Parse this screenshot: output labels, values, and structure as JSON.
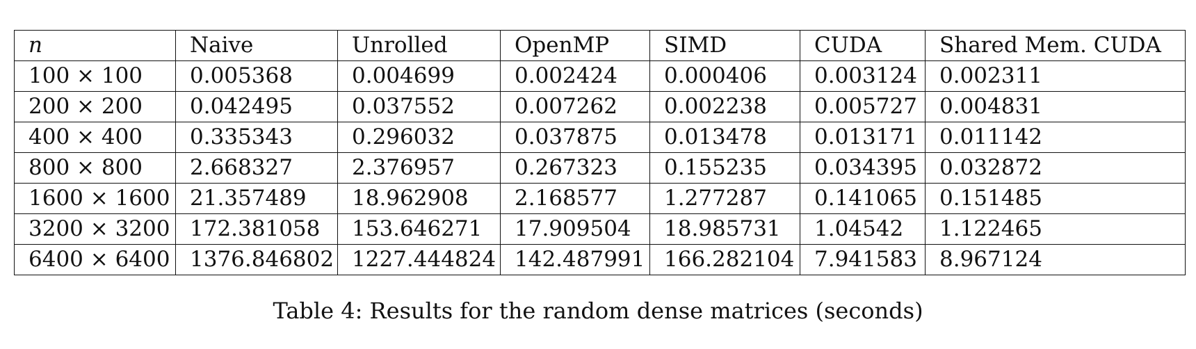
{
  "table": {
    "headers": [
      "n",
      "Naive",
      "Unrolled",
      "OpenMP",
      "SIMD",
      "CUDA",
      "Shared Mem. CUDA"
    ],
    "rows": [
      [
        "100 × 100",
        "0.005368",
        "0.004699",
        "0.002424",
        "0.000406",
        "0.003124",
        "0.002311"
      ],
      [
        "200 × 200",
        "0.042495",
        "0.037552",
        "0.007262",
        "0.002238",
        "0.005727",
        "0.004831"
      ],
      [
        "400 × 400",
        "0.335343",
        "0.296032",
        "0.037875",
        "0.013478",
        "0.013171",
        "0.011142"
      ],
      [
        "800 × 800",
        "2.668327",
        "2.376957",
        "0.267323",
        "0.155235",
        "0.034395",
        "0.032872"
      ],
      [
        "1600 × 1600",
        "21.357489",
        "18.962908",
        "2.168577",
        "1.277287",
        "0.141065",
        "0.151485"
      ],
      [
        "3200 × 3200",
        "172.381058",
        "153.646271",
        "17.909504",
        "18.985731",
        "1.04542",
        "1.122465"
      ],
      [
        "6400 × 6400",
        "1376.846802",
        "1227.444824",
        "142.487991",
        "166.282104",
        "7.941583",
        "8.967124"
      ]
    ]
  },
  "caption": "Table 4: Results for the random dense matrices (seconds)"
}
